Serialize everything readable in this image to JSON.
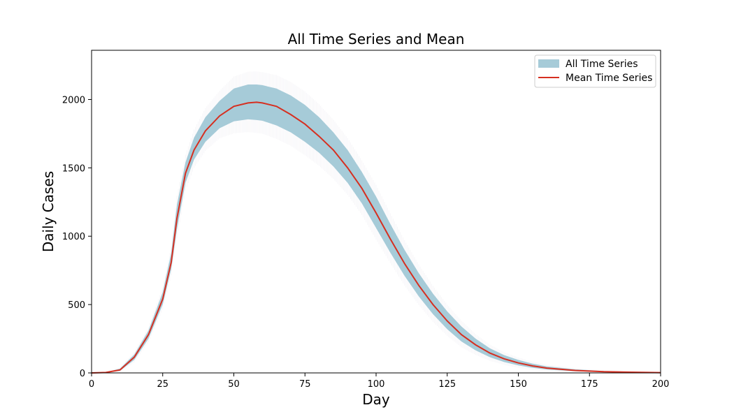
{
  "chart_data": {
    "type": "line",
    "title": "All Time Series and Mean",
    "xlabel": "Day",
    "ylabel": "Daily Cases",
    "xlim": [
      0,
      200
    ],
    "ylim": [
      0,
      2360
    ],
    "xticks": [
      0,
      25,
      50,
      75,
      100,
      125,
      150,
      175,
      200
    ],
    "yticks": [
      0,
      500,
      1000,
      1500,
      2000
    ],
    "grid": false,
    "legend_position": "top-right",
    "colors": {
      "band": "#a6cbd8",
      "band_noise": "#b9a9c4",
      "mean": "#d62f20",
      "axis": "#000000",
      "legend_border": "#cccccc"
    },
    "series": [
      {
        "name": "All Time Series",
        "kind": "band",
        "x": [
          0,
          5,
          10,
          15,
          20,
          25,
          28,
          30,
          33,
          36,
          40,
          45,
          50,
          55,
          58,
          60,
          65,
          70,
          75,
          80,
          85,
          90,
          95,
          100,
          105,
          110,
          115,
          120,
          125,
          130,
          135,
          140,
          145,
          150,
          155,
          160,
          170,
          180,
          190,
          200
        ],
        "lower": [
          0,
          2,
          15,
          95,
          250,
          500,
          760,
          1050,
          1390,
          1560,
          1690,
          1790,
          1840,
          1855,
          1850,
          1845,
          1810,
          1760,
          1690,
          1610,
          1510,
          1390,
          1240,
          1060,
          880,
          710,
          560,
          430,
          320,
          230,
          165,
          115,
          80,
          55,
          37,
          25,
          12,
          6,
          3,
          1
        ],
        "upper": [
          0,
          4,
          32,
          135,
          310,
          590,
          880,
          1230,
          1540,
          1720,
          1870,
          1990,
          2080,
          2110,
          2110,
          2105,
          2080,
          2030,
          1960,
          1870,
          1760,
          1630,
          1470,
          1290,
          1090,
          900,
          730,
          580,
          450,
          340,
          250,
          180,
          130,
          95,
          68,
          48,
          26,
          14,
          8,
          4
        ]
      },
      {
        "name": "Mean Time Series",
        "kind": "line",
        "x": [
          0,
          5,
          10,
          15,
          20,
          25,
          28,
          30,
          33,
          36,
          40,
          45,
          50,
          55,
          58,
          60,
          65,
          70,
          75,
          80,
          85,
          90,
          95,
          100,
          105,
          110,
          115,
          120,
          125,
          130,
          135,
          140,
          145,
          150,
          155,
          160,
          170,
          180,
          190,
          200
        ],
        "values": [
          0,
          3,
          22,
          115,
          280,
          540,
          810,
          1130,
          1460,
          1630,
          1770,
          1880,
          1950,
          1975,
          1980,
          1975,
          1950,
          1890,
          1820,
          1730,
          1630,
          1500,
          1350,
          1170,
          980,
          800,
          640,
          500,
          380,
          280,
          205,
          145,
          103,
          73,
          51,
          35,
          18,
          9,
          5,
          2
        ]
      }
    ]
  }
}
